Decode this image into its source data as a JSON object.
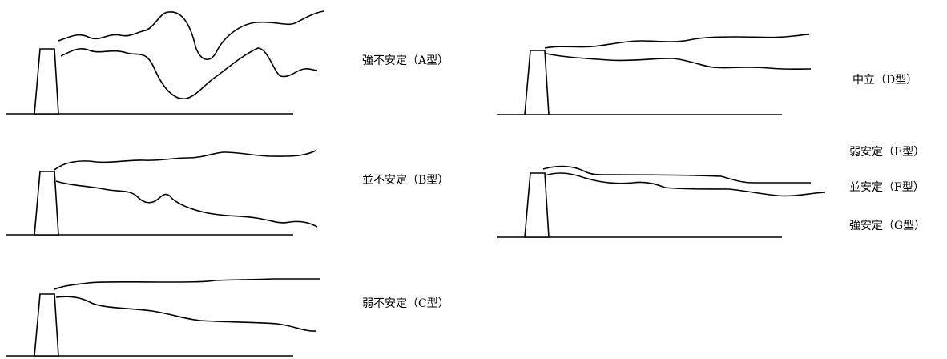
{
  "figure": {
    "panels": [
      {
        "id": "A",
        "label": "強不安定（A型）"
      },
      {
        "id": "B",
        "label": "並不安定（B型）"
      },
      {
        "id": "C",
        "label": "弱不安定（C型）"
      },
      {
        "id": "D",
        "label": "中立（D型）"
      },
      {
        "id": "EFG",
        "labels": [
          "弱安定（E型）",
          "並安定（F型）",
          "強安定（G型）"
        ]
      }
    ]
  }
}
